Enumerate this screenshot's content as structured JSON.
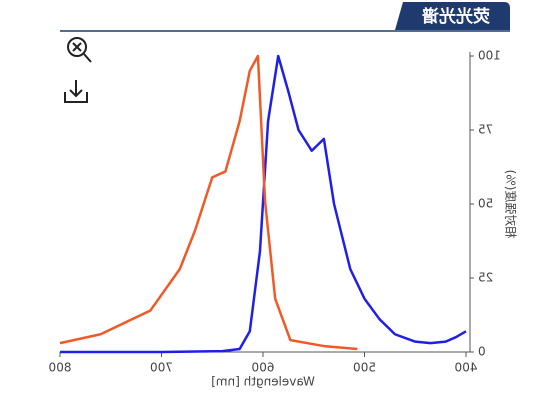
{
  "title": "荧光光谱",
  "chart_data": {
    "type": "line",
    "xlabel": "Wavelength [nm]",
    "ylabel": "相对强度(%)",
    "xlim": [
      400,
      800
    ],
    "xticks": [
      400,
      500,
      600,
      700,
      800
    ],
    "ylim": [
      0,
      100
    ],
    "yticks": [
      0,
      25,
      50,
      75,
      100
    ],
    "series": [
      {
        "color": "#1f1fe8",
        "x": [
          400,
          410,
          420,
          435,
          450,
          470,
          485,
          500,
          514,
          530,
          540,
          552,
          565,
          575,
          585,
          595,
          603,
          613,
          623,
          640,
          700,
          800
        ],
        "values": [
          7,
          5,
          3.5,
          3,
          3.5,
          6,
          11,
          18,
          28,
          50,
          72,
          68,
          75,
          88,
          100,
          78,
          34,
          7,
          1,
          0.3,
          0,
          0
        ]
      },
      {
        "color": "#f05a28",
        "x": [
          507,
          540,
          573,
          588,
          598,
          605,
          613,
          623,
          637,
          650,
          667,
          682,
          711,
          760,
          800
        ],
        "values": [
          1,
          2,
          4,
          18,
          51,
          100,
          95,
          78,
          61,
          59,
          41,
          28,
          14,
          6,
          3
        ]
      }
    ]
  }
}
